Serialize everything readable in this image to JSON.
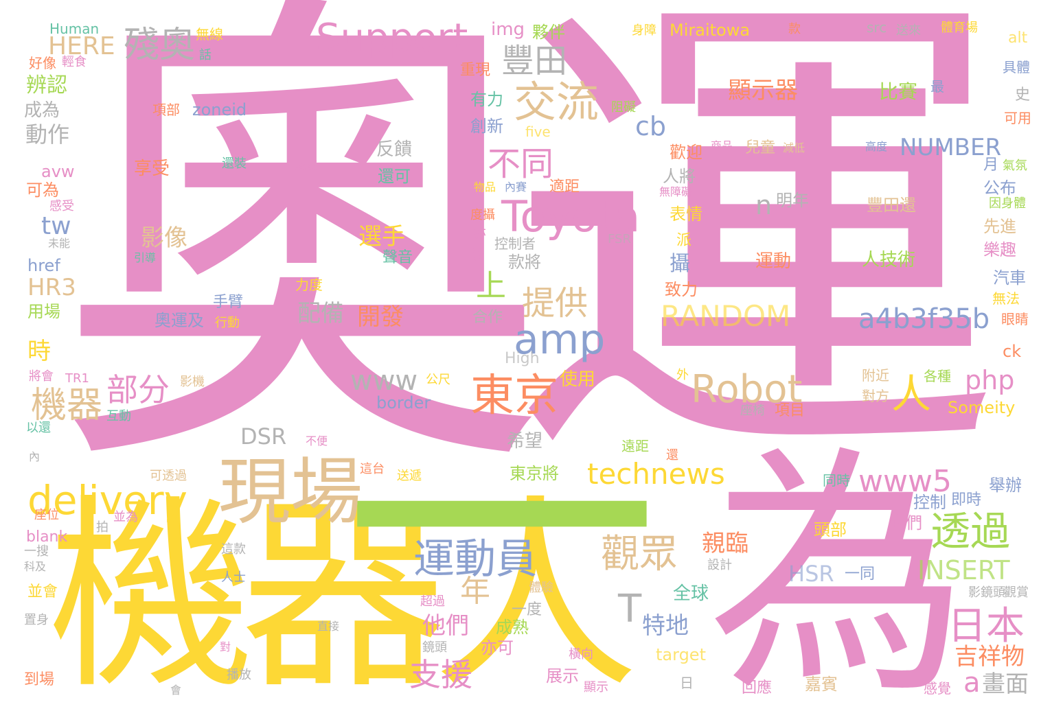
{
  "words": {
    "aoyun": "奧運",
    "jiqiren": "機器人",
    "wei": "為",
    "yi": "一",
    "xianchang": "現場",
    "support": "Support",
    "toyota": "Toyota",
    "jiaoliu": "交流",
    "fengtian": "豐田",
    "canao": "殘奧",
    "amp": "amp",
    "robot": "Robot",
    "dongjing": "東京",
    "delivery": "delivery",
    "yundongyuan": "運動員",
    "touguo": "透過",
    "guanzhong": "觀眾",
    "riben": "日本",
    "ren": "人",
    "tigong": "提供",
    "butong": "不同",
    "jiqi": "機器",
    "bufen": "部分",
    "technews": "technews",
    "random": "RANDOM",
    "a4b": "a4b3f35b",
    "www5": "www5",
    "www": "www",
    "nian": "年",
    "zhiyuan": "支援",
    "xiaoshiqi": "顯示器",
    "php": "php",
    "number": "NUMBER",
    "insert": "INSERT",
    "jixiangwu": "吉祥物",
    "huamian": "畫面",
    "a": "a",
    "t": "T",
    "shang": "上",
    "cb": "cb",
    "here": "HERE",
    "hr3": "HR3",
    "tw": "tw",
    "xuanshou": "選手",
    "kaifa": "開發",
    "peibei": "配備",
    "yingxiang": "影像",
    "tade": "他們",
    "tedi": "特地",
    "qinlin": "親臨",
    "hsr": "HSR",
    "dsr": "DSR",
    "n": "n",
    "mingnian": "明年",
    "bianren": "辨認",
    "dongzuo": "動作",
    "chengwei": "成為",
    "shi": "時",
    "bisai": "比賽",
    "yundong": "運動",
    "renjishu": "人技術",
    "fengtianhuan": "豐田還",
    "zhichuang": "創新",
    "youli": "有力",
    "chongxian": "重現",
    "img": "img",
    "huoban": "夥伴",
    "miraitowa": "Miraitowa",
    "human": "Human",
    "wuxian": "無線",
    "zoneid": "zoneid",
    "xiangbu": "項部",
    "xiangshou": "享受",
    "avw": "avw",
    "kewei": "可為",
    "href": "href",
    "yongchang": "用場",
    "fankui": "反饋",
    "huanke": "還可",
    "renjiang": "人將",
    "huanying": "歡迎",
    "shiyong": "使用",
    "kuanjiang": "款將",
    "she": "攝",
    "zhili": "致力",
    "biaoqing": "表情",
    "gongbu": "公布",
    "xianjin": "先進",
    "lequ": "樂趣",
    "qiche": "汽車",
    "wufa": "無法",
    "yanjing": "眼睛",
    "ck": "ck",
    "geizhong": "各種",
    "fujin": "附近",
    "duifang": "對方",
    "someity": "Someity",
    "xiangmu": "項目",
    "jubing": "舉辦",
    "kongzhi": "控制",
    "jishi": "即時",
    "tamen": "它們",
    "toubu": "頭部",
    "yitong": "一同",
    "tongshi": "同時",
    "quanqiu": "全球",
    "chengshu": "成熟",
    "yike": "亦可",
    "zhanshi": "展示",
    "jiabin": "嘉賓",
    "huiying": "回應",
    "ganjue": "感覺",
    "border": "border",
    "high": "High",
    "target": "target",
    "yuanju": "遠距",
    "xiwang": "希望",
    "dongjingjiang": "東京將",
    "hezuo": "合作",
    "aoyunji": "奧運及",
    "xingdong": "行動",
    "shoubi": "手臂",
    "lidu": "力度",
    "shengyin": "聲音",
    "kongzhizhe": "控制者",
    "yu": "於",
    "yi2": "亦",
    "dusou": "度攝",
    "wupin": "物品",
    "neisai": "內賽",
    "shiju": "適距",
    "yuanzhuang": "還裝",
    "chengsai": "成賽",
    "wuzhangai": "無障礙",
    "shangpin": "商品",
    "ertong": "兒童",
    "jiandi": "減低",
    "gaodu": "高度",
    "yue": "月",
    "qifen": "氣氛",
    "yinshenti": "因身體",
    "keyong": "可用",
    "shi2": "史",
    "juti": "具體",
    "zui": "最",
    "alt": "alt",
    "src": "src",
    "songlai": "送來",
    "tiyuchang": "體育場",
    "kuan": "款",
    "shenzhang": "身障",
    "five": "five",
    "zuai": "阻礙",
    "haoxiang": "好像",
    "qingshi": "輕食",
    "hua": "話",
    "ganshou": "感受",
    "weineng": "未能",
    "yindao": "引導",
    "fsr": "FSR",
    "pai": "派",
    "jianghui": "將會",
    "tr1": "TR1",
    "yingji": "影機",
    "gongchi": "公尺",
    "hudong": "互動",
    "yihuan": "以還",
    "nei": "內",
    "butong2": "不便",
    "ketouguo": "可透過",
    "songdi": "送遞",
    "zheitai": "這台",
    "wai": "外",
    "zuoyi": "座椅",
    "huan": "還",
    "yuanju2": "遠距",
    "zuowei": "座位",
    "bingwei": "並為",
    "pai2": "拍",
    "blank": "blank",
    "yisou": "一搜",
    "keji": "科及",
    "zheikuan": "這款",
    "renshi": "人士",
    "sheji": "設計",
    "tiyan": "體驗",
    "chaoguo": "超過",
    "yidu": "一度",
    "binghui": "並會",
    "zhishen": "置身",
    "zhijie": "直接",
    "jingtou": "鏡頭",
    "dui": "對",
    "daochang": "到場",
    "bofang": "播放",
    "hui": "會",
    "ri": "日",
    "xianshi": "顯示",
    "hengxiang": "橫向",
    "yingjingtou": "影鏡頭",
    "guanshang": "觀賞"
  }
}
